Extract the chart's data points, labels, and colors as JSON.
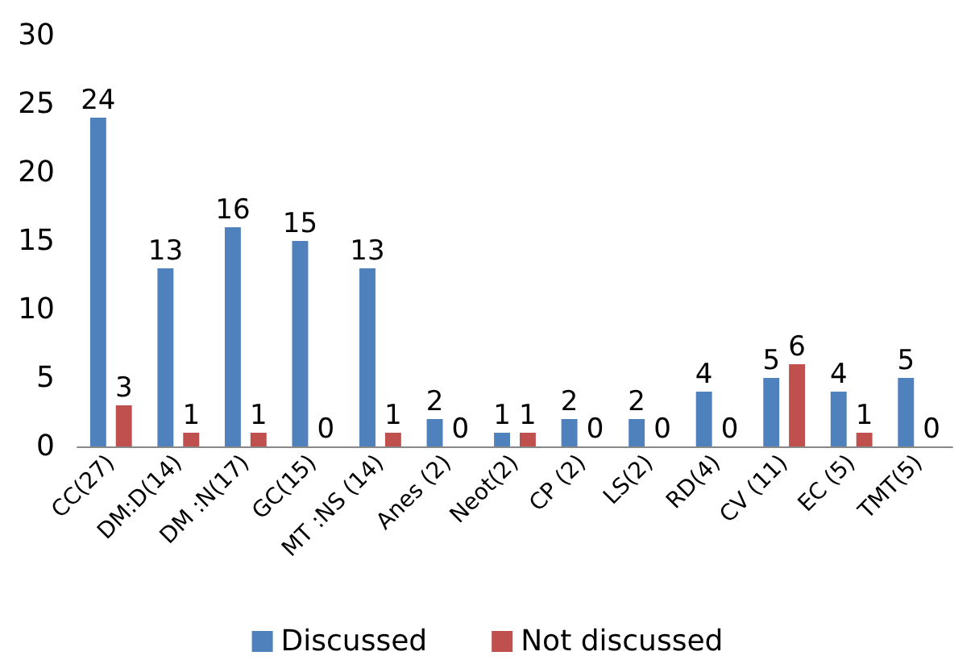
{
  "chart_data": {
    "type": "bar",
    "categories": [
      "CC(27)",
      "DM:D(14)",
      "DM :N(17)",
      "GC(15)",
      "MT :NS (14)",
      "Anes (2)",
      "Neot(2)",
      "CP (2)",
      "LS(2)",
      "RD(4)",
      "CV (11)",
      "EC (5)",
      "TMT(5)"
    ],
    "series": [
      {
        "name": "Discussed",
        "color": "#4f81bd",
        "values": [
          24,
          13,
          16,
          15,
          13,
          2,
          1,
          2,
          2,
          4,
          5,
          4,
          5
        ]
      },
      {
        "name": "Not discussed",
        "color": "#c0504d",
        "values": [
          3,
          1,
          1,
          0,
          1,
          0,
          1,
          0,
          0,
          0,
          6,
          1,
          0
        ]
      }
    ],
    "ylim": [
      0,
      30
    ],
    "yticks": [
      0,
      5,
      10,
      15,
      20,
      25,
      30
    ],
    "grid": false,
    "legend": "bottom",
    "data_labels": true
  }
}
